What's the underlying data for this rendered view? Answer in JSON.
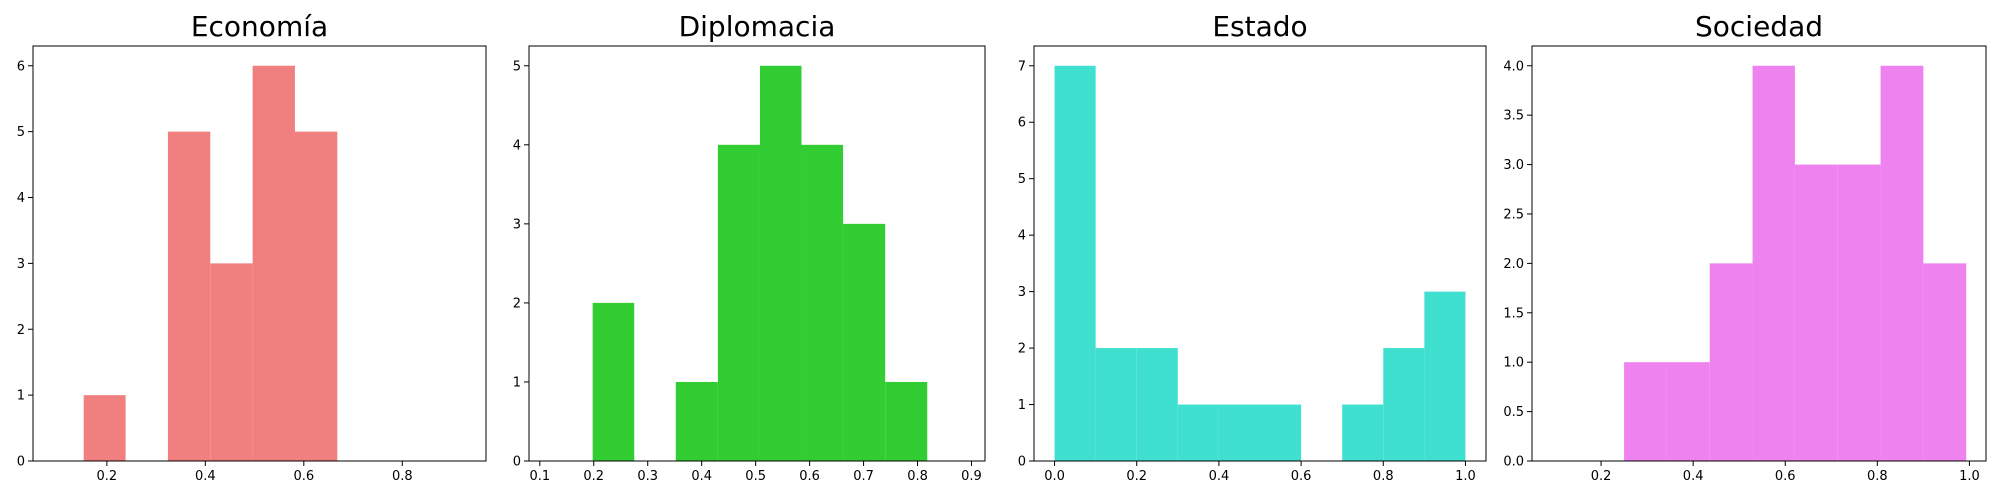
{
  "chart_data": [
    {
      "type": "bar",
      "subtype": "histogram",
      "title": "Economía",
      "color": "#f08080",
      "bins": [
        {
          "x0": 0.153,
          "x1": 0.238,
          "count": 1
        },
        {
          "x0": 0.238,
          "x1": 0.324,
          "count": 0
        },
        {
          "x0": 0.324,
          "x1": 0.41,
          "count": 5
        },
        {
          "x0": 0.41,
          "x1": 0.496,
          "count": 3
        },
        {
          "x0": 0.496,
          "x1": 0.582,
          "count": 6
        },
        {
          "x0": 0.582,
          "x1": 0.668,
          "count": 5
        }
      ],
      "xlim": [
        0.05,
        0.97
      ],
      "ylim": [
        0,
        6.3
      ],
      "xticks": [
        0.2,
        0.4,
        0.6,
        0.8
      ],
      "xtick_labels": [
        "0.2",
        "0.4",
        "0.6",
        "0.8"
      ],
      "yticks": [
        0,
        1,
        2,
        3,
        4,
        5,
        6
      ],
      "ytick_labels": [
        "0",
        "1",
        "2",
        "3",
        "4",
        "5",
        "6"
      ]
    },
    {
      "type": "bar",
      "subtype": "histogram",
      "title": "Diplomacia",
      "color": "#32cd32",
      "bins": [
        {
          "x0": 0.198,
          "x1": 0.275,
          "count": 2
        },
        {
          "x0": 0.275,
          "x1": 0.352,
          "count": 0
        },
        {
          "x0": 0.352,
          "x1": 0.43,
          "count": 1
        },
        {
          "x0": 0.43,
          "x1": 0.508,
          "count": 4
        },
        {
          "x0": 0.508,
          "x1": 0.585,
          "count": 5
        },
        {
          "x0": 0.585,
          "x1": 0.662,
          "count": 4
        },
        {
          "x0": 0.662,
          "x1": 0.74,
          "count": 3
        },
        {
          "x0": 0.74,
          "x1": 0.818,
          "count": 1
        }
      ],
      "xlim": [
        0.08,
        0.925
      ],
      "ylim": [
        0,
        5.25
      ],
      "xticks": [
        0.1,
        0.2,
        0.3,
        0.4,
        0.5,
        0.6,
        0.7,
        0.8,
        0.9
      ],
      "xtick_labels": [
        "0.1",
        "0.2",
        "0.3",
        "0.4",
        "0.5",
        "0.6",
        "0.7",
        "0.8",
        "0.9"
      ],
      "yticks": [
        0,
        1,
        2,
        3,
        4,
        5
      ],
      "ytick_labels": [
        "0",
        "1",
        "2",
        "3",
        "4",
        "5"
      ]
    },
    {
      "type": "bar",
      "subtype": "histogram",
      "title": "Estado",
      "color": "#40e0d0",
      "bins": [
        {
          "x0": 0.0,
          "x1": 0.1,
          "count": 7
        },
        {
          "x0": 0.1,
          "x1": 0.2,
          "count": 2
        },
        {
          "x0": 0.2,
          "x1": 0.3,
          "count": 2
        },
        {
          "x0": 0.3,
          "x1": 0.4,
          "count": 1
        },
        {
          "x0": 0.4,
          "x1": 0.5,
          "count": 1
        },
        {
          "x0": 0.5,
          "x1": 0.6,
          "count": 1
        },
        {
          "x0": 0.6,
          "x1": 0.7,
          "count": 0
        },
        {
          "x0": 0.7,
          "x1": 0.8,
          "count": 1
        },
        {
          "x0": 0.8,
          "x1": 0.9,
          "count": 2
        },
        {
          "x0": 0.9,
          "x1": 1.0,
          "count": 3
        }
      ],
      "xlim": [
        -0.05,
        1.05
      ],
      "ylim": [
        0,
        7.35
      ],
      "xticks": [
        0.0,
        0.2,
        0.4,
        0.6,
        0.8,
        1.0
      ],
      "xtick_labels": [
        "0.0",
        "0.2",
        "0.4",
        "0.6",
        "0.8",
        "1.0"
      ],
      "yticks": [
        0,
        1,
        2,
        3,
        4,
        5,
        6,
        7
      ],
      "ytick_labels": [
        "0",
        "1",
        "2",
        "3",
        "4",
        "5",
        "6",
        "7"
      ]
    },
    {
      "type": "bar",
      "subtype": "histogram",
      "title": "Sociedad",
      "color": "#ee82ee",
      "bins": [
        {
          "x0": 0.25,
          "x1": 0.343,
          "count": 1
        },
        {
          "x0": 0.343,
          "x1": 0.436,
          "count": 1
        },
        {
          "x0": 0.436,
          "x1": 0.529,
          "count": 2
        },
        {
          "x0": 0.529,
          "x1": 0.621,
          "count": 4
        },
        {
          "x0": 0.621,
          "x1": 0.714,
          "count": 3
        },
        {
          "x0": 0.714,
          "x1": 0.807,
          "count": 3
        },
        {
          "x0": 0.807,
          "x1": 0.9,
          "count": 4
        },
        {
          "x0": 0.9,
          "x1": 0.993,
          "count": 2
        }
      ],
      "xlim": [
        0.05,
        1.036
      ],
      "ylim": [
        0,
        4.2
      ],
      "xticks": [
        0.2,
        0.4,
        0.6,
        0.8,
        1.0
      ],
      "xtick_labels": [
        "0.2",
        "0.4",
        "0.6",
        "0.8",
        "1.0"
      ],
      "yticks": [
        0.0,
        0.5,
        1.0,
        1.5,
        2.0,
        2.5,
        3.0,
        3.5,
        4.0
      ],
      "ytick_labels": [
        "0.0",
        "0.5",
        "1.0",
        "1.5",
        "2.0",
        "2.5",
        "3.0",
        "3.5",
        "4.0"
      ]
    }
  ]
}
